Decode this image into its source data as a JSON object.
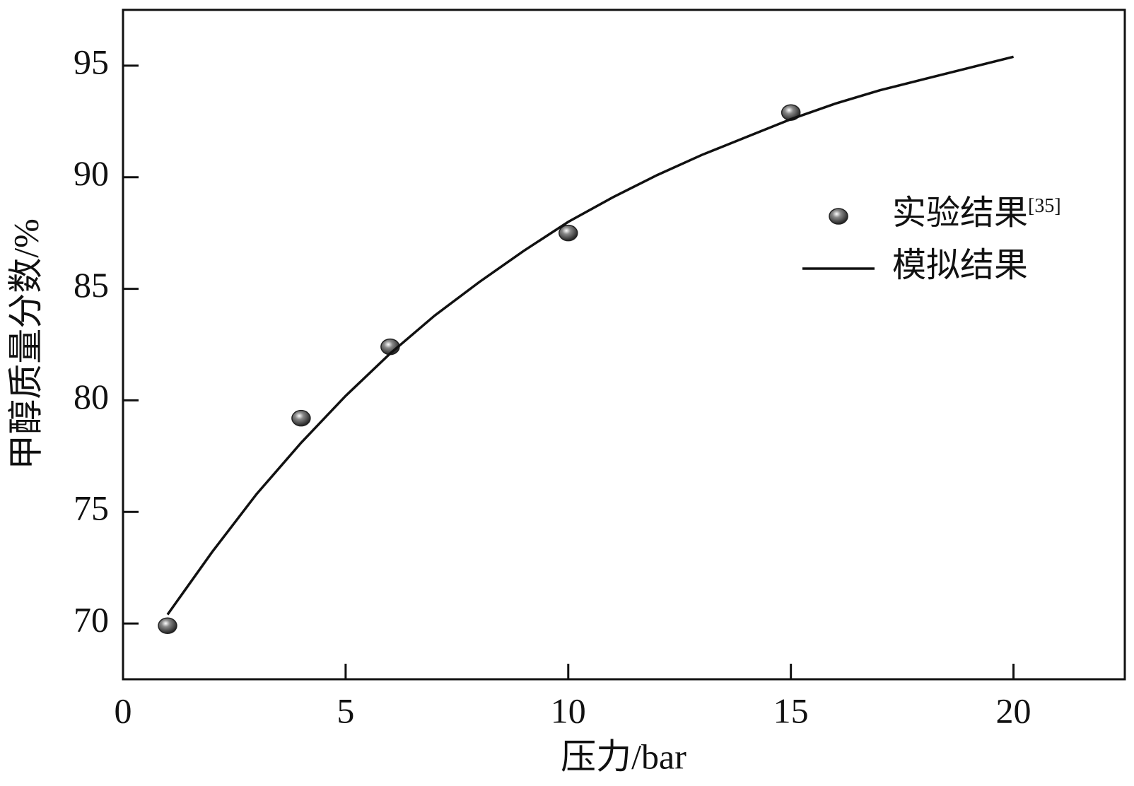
{
  "chart_data": {
    "type": "scatter-line",
    "x_label": "压力/bar",
    "y_label": "甲醇质量分数/%",
    "xlim": [
      0,
      22.5
    ],
    "xticks": [
      0,
      5,
      10,
      15,
      20
    ],
    "ylim": [
      67.5,
      97.5
    ],
    "yticks": [
      70,
      75,
      80,
      85,
      90,
      95
    ],
    "grid": false,
    "legend_position": "right",
    "series": [
      {
        "name": "实验结果",
        "citation": "[35]",
        "kind": "scatter",
        "color": "#222222",
        "x": [
          1,
          4,
          6,
          10,
          15
        ],
        "values": [
          69.9,
          79.2,
          82.4,
          87.5,
          92.9
        ]
      },
      {
        "name": "模拟结果",
        "kind": "line",
        "color": "#111111",
        "x": [
          1,
          2,
          3,
          4,
          5,
          6,
          7,
          8,
          9,
          10,
          11,
          12,
          13,
          14,
          15,
          16,
          17,
          18,
          19,
          20
        ],
        "values": [
          70.4,
          73.2,
          75.8,
          78.1,
          80.2,
          82.1,
          83.8,
          85.3,
          86.7,
          88.0,
          89.1,
          90.1,
          91.0,
          91.8,
          92.6,
          93.3,
          93.9,
          94.4,
          94.9,
          95.4
        ]
      }
    ]
  }
}
